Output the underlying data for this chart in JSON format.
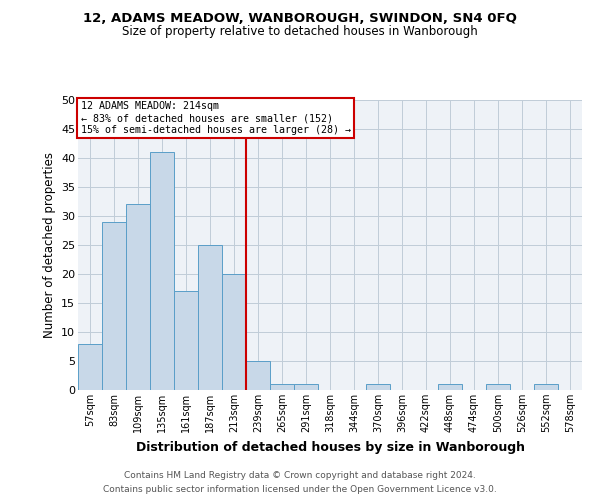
{
  "title1": "12, ADAMS MEADOW, WANBOROUGH, SWINDON, SN4 0FQ",
  "title2": "Size of property relative to detached houses in Wanborough",
  "xlabel": "Distribution of detached houses by size in Wanborough",
  "ylabel": "Number of detached properties",
  "bar_labels": [
    "57sqm",
    "83sqm",
    "109sqm",
    "135sqm",
    "161sqm",
    "187sqm",
    "213sqm",
    "239sqm",
    "265sqm",
    "291sqm",
    "318sqm",
    "344sqm",
    "370sqm",
    "396sqm",
    "422sqm",
    "448sqm",
    "474sqm",
    "500sqm",
    "526sqm",
    "552sqm",
    "578sqm"
  ],
  "bar_values": [
    8,
    29,
    32,
    41,
    17,
    25,
    20,
    5,
    1,
    1,
    0,
    0,
    1,
    0,
    0,
    1,
    0,
    1,
    0,
    1,
    0
  ],
  "bar_color": "#c8d8e8",
  "bar_edge_color": "#5a9ec8",
  "red_line_x": 6.5,
  "annotation_title": "12 ADAMS MEADOW: 214sqm",
  "annotation_line1": "← 83% of detached houses are smaller (152)",
  "annotation_line2": "15% of semi-detached houses are larger (28) →",
  "vline_color": "#cc0000",
  "annotation_box_color": "#cc0000",
  "ylim": [
    0,
    50
  ],
  "yticks": [
    0,
    5,
    10,
    15,
    20,
    25,
    30,
    35,
    40,
    45,
    50
  ],
  "footer1": "Contains HM Land Registry data © Crown copyright and database right 2024.",
  "footer2": "Contains public sector information licensed under the Open Government Licence v3.0.",
  "background_color": "#eef2f7",
  "grid_color": "#c0ccd8"
}
